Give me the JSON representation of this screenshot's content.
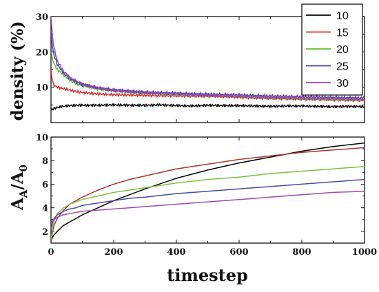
{
  "chart_data": [
    {
      "type": "line",
      "ylabel": "density (%)",
      "xlim": [
        0,
        1000
      ],
      "ylim": [
        0,
        30
      ],
      "yticks": [
        10,
        20,
        30
      ],
      "grid": false,
      "legend": {
        "placement": "top-right",
        "entries": [
          "10",
          "15",
          "20",
          "25",
          "30"
        ]
      },
      "series": [
        {
          "name": "10",
          "color": "#000000",
          "x": [
            0,
            5,
            10,
            20,
            40,
            60,
            80,
            100,
            150,
            200,
            250,
            300,
            350,
            400,
            450,
            500,
            550,
            600,
            650,
            700,
            750,
            800,
            850,
            900,
            950,
            1000
          ],
          "y": [
            3.5,
            3.8,
            4.0,
            4.3,
            4.6,
            4.8,
            4.9,
            4.9,
            4.9,
            5.0,
            4.9,
            4.9,
            5.0,
            4.8,
            4.7,
            4.9,
            4.8,
            4.8,
            4.7,
            4.6,
            4.7,
            4.7,
            4.6,
            4.5,
            4.6,
            4.5
          ]
        },
        {
          "name": "15",
          "color": "#e02828",
          "x": [
            0,
            5,
            10,
            20,
            40,
            60,
            80,
            100,
            150,
            200,
            250,
            300,
            350,
            400,
            450,
            500,
            550,
            600,
            650,
            700,
            750,
            800,
            850,
            900,
            950,
            1000
          ],
          "y": [
            15,
            11.5,
            10.5,
            10.0,
            9.6,
            9.2,
            8.8,
            8.5,
            8.1,
            7.9,
            7.8,
            7.7,
            7.6,
            7.6,
            7.5,
            7.5,
            7.4,
            7.2,
            7.0,
            6.9,
            6.8,
            6.7,
            6.6,
            6.5,
            6.4,
            6.3
          ]
        },
        {
          "name": "20",
          "color": "#58c02e",
          "x": [
            0,
            5,
            10,
            20,
            40,
            60,
            80,
            100,
            150,
            200,
            250,
            300,
            350,
            400,
            450,
            500,
            550,
            600,
            650,
            700,
            750,
            800,
            850,
            900,
            950,
            1000
          ],
          "y": [
            20,
            18,
            16.5,
            15,
            13.5,
            12,
            11,
            10.5,
            9.5,
            9.0,
            8.6,
            8.3,
            8.1,
            7.9,
            7.8,
            7.7,
            7.6,
            7.4,
            7.2,
            7.0,
            6.9,
            6.8,
            6.7,
            6.6,
            6.5,
            6.4
          ]
        },
        {
          "name": "25",
          "color": "#3f3fa8",
          "x": [
            0,
            5,
            10,
            20,
            40,
            60,
            80,
            100,
            150,
            200,
            250,
            300,
            350,
            400,
            450,
            500,
            550,
            600,
            650,
            700,
            750,
            800,
            850,
            900,
            950,
            1000
          ],
          "y": [
            25,
            21,
            19,
            16.5,
            14,
            12.5,
            11.5,
            10.8,
            9.8,
            9.2,
            8.9,
            8.6,
            8.4,
            8.3,
            8.1,
            8.0,
            7.9,
            7.8,
            7.6,
            7.5,
            7.4,
            7.3,
            7.2,
            7.1,
            7.0,
            7.0
          ]
        },
        {
          "name": "30",
          "color": "#a040b8",
          "x": [
            0,
            5,
            10,
            20,
            40,
            60,
            80,
            100,
            150,
            200,
            250,
            300,
            350,
            400,
            450,
            500,
            550,
            600,
            650,
            700,
            750,
            800,
            850,
            900,
            950,
            1000
          ],
          "y": [
            30,
            24,
            21,
            17.5,
            14.5,
            12.8,
            11.7,
            10.9,
            9.8,
            9.2,
            8.8,
            8.5,
            8.3,
            8.1,
            7.9,
            7.8,
            7.6,
            7.5,
            7.3,
            7.2,
            7.1,
            7.0,
            6.9,
            6.8,
            6.7,
            6.6
          ]
        }
      ]
    },
    {
      "type": "line",
      "xlabel": "timestep",
      "ylabel": {
        "main": "A",
        "sub1": "A",
        "mid": "/A",
        "sub2": "0"
      },
      "xlim": [
        0,
        1000
      ],
      "ylim": [
        1,
        10
      ],
      "xticks": [
        0,
        200,
        400,
        600,
        800,
        1000
      ],
      "yticks": [
        2,
        4,
        6,
        8,
        10
      ],
      "grid": false,
      "series": [
        {
          "name": "10",
          "color": "#000000",
          "x": [
            0,
            5,
            10,
            20,
            40,
            60,
            80,
            100,
            150,
            200,
            250,
            300,
            400,
            500,
            600,
            700,
            800,
            900,
            1000
          ],
          "y": [
            1.2,
            1.5,
            1.7,
            2.0,
            2.5,
            2.8,
            3.1,
            3.4,
            4.0,
            4.6,
            5.1,
            5.6,
            6.5,
            7.2,
            7.8,
            8.3,
            8.8,
            9.2,
            9.5
          ]
        },
        {
          "name": "15",
          "color": "#b03030",
          "x": [
            0,
            5,
            10,
            20,
            40,
            60,
            80,
            100,
            150,
            200,
            250,
            300,
            400,
            500,
            600,
            700,
            800,
            900,
            1000
          ],
          "y": [
            1.0,
            2.0,
            2.5,
            3.1,
            3.8,
            4.3,
            4.6,
            4.9,
            5.5,
            6.0,
            6.4,
            6.7,
            7.3,
            7.7,
            8.1,
            8.4,
            8.7,
            8.9,
            9.1
          ]
        },
        {
          "name": "20",
          "color": "#7cc040",
          "x": [
            0,
            5,
            10,
            20,
            40,
            60,
            80,
            100,
            150,
            200,
            250,
            300,
            400,
            500,
            600,
            700,
            800,
            900,
            1000
          ],
          "y": [
            1.3,
            2.3,
            2.9,
            3.5,
            4.0,
            4.3,
            4.5,
            4.7,
            5.0,
            5.3,
            5.5,
            5.7,
            6.1,
            6.4,
            6.6,
            6.9,
            7.1,
            7.3,
            7.5
          ]
        },
        {
          "name": "25",
          "color": "#4848a8",
          "x": [
            0,
            5,
            10,
            20,
            40,
            60,
            80,
            100,
            150,
            200,
            250,
            300,
            400,
            500,
            600,
            700,
            800,
            900,
            1000
          ],
          "y": [
            2.2,
            2.8,
            3.1,
            3.4,
            3.7,
            3.9,
            4.0,
            4.2,
            4.4,
            4.6,
            4.8,
            4.9,
            5.2,
            5.4,
            5.6,
            5.8,
            6.0,
            6.2,
            6.4
          ]
        },
        {
          "name": "30",
          "color": "#a048b0",
          "x": [
            0,
            5,
            10,
            20,
            40,
            60,
            80,
            100,
            150,
            200,
            250,
            300,
            400,
            500,
            600,
            700,
            800,
            900,
            1000
          ],
          "y": [
            2.7,
            2.9,
            3.0,
            3.2,
            3.4,
            3.5,
            3.6,
            3.7,
            3.8,
            3.9,
            4.0,
            4.1,
            4.3,
            4.5,
            4.7,
            4.9,
            5.1,
            5.3,
            5.4
          ]
        }
      ]
    }
  ]
}
